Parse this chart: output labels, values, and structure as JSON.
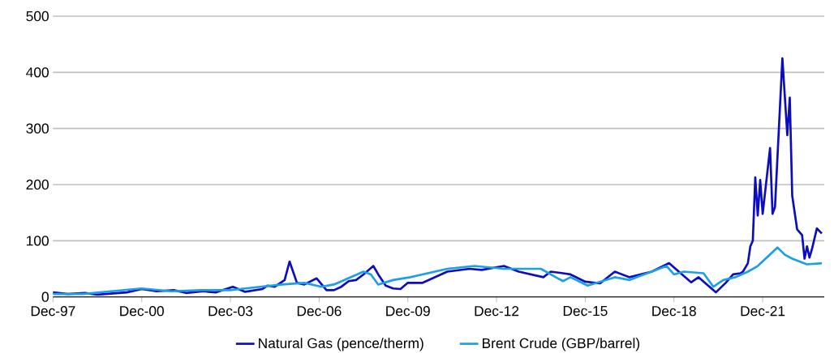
{
  "chart_data": {
    "type": "line",
    "xlim": [
      "1997-12",
      "2024-01"
    ],
    "xticks": [
      {
        "value": "1997-12",
        "label": "Dec-97"
      },
      {
        "value": "2000-12",
        "label": "Dec-00"
      },
      {
        "value": "2003-12",
        "label": "Dec-03"
      },
      {
        "value": "2006-12",
        "label": "Dec-06"
      },
      {
        "value": "2009-12",
        "label": "Dec-09"
      },
      {
        "value": "2012-12",
        "label": "Dec-12"
      },
      {
        "value": "2015-12",
        "label": "Dec-15"
      },
      {
        "value": "2018-12",
        "label": "Dec-18"
      },
      {
        "value": "2021-12",
        "label": "Dec-21"
      }
    ],
    "ylim": [
      0,
      500
    ],
    "yticks": [
      0,
      100,
      200,
      300,
      400,
      500
    ],
    "grid": "y",
    "legend": "bottom",
    "marker": "none",
    "line_style": "solid",
    "series": [
      {
        "name": "Natural Gas (pence/therm)",
        "color": "#0c0cc0",
        "x": [
          "1997-12",
          "1998-06",
          "1999-01",
          "1999-06",
          "2000-06",
          "2000-12",
          "2001-06",
          "2002-01",
          "2002-06",
          "2003-01",
          "2003-06",
          "2004-01",
          "2004-06",
          "2005-01",
          "2005-03",
          "2005-06",
          "2005-10",
          "2005-12",
          "2006-03",
          "2006-06",
          "2006-11",
          "2007-03",
          "2007-06",
          "2007-09",
          "2007-12",
          "2008-03",
          "2008-06",
          "2008-10",
          "2008-12",
          "2009-03",
          "2009-06",
          "2009-09",
          "2009-12",
          "2010-06",
          "2011-04",
          "2012-01",
          "2012-06",
          "2013-03",
          "2013-09",
          "2014-07",
          "2014-10",
          "2015-03",
          "2015-06",
          "2015-12",
          "2016-06",
          "2016-12",
          "2017-06",
          "2018-03",
          "2018-10",
          "2019-07",
          "2019-10",
          "2020-05",
          "2020-09",
          "2020-12",
          "2021-03",
          "2021-04",
          "2021-06",
          "2021-07",
          "2021-08",
          "2021-09",
          "2021-10",
          "2021-11",
          "2021-12",
          "2022-03",
          "2022-04",
          "2022-05",
          "2022-08",
          "2022-10",
          "2022-11",
          "2022-12",
          "2023-02",
          "2023-04",
          "2023-05",
          "2023-06",
          "2023-07",
          "2023-08",
          "2023-10",
          "2023-12"
        ],
        "values": [
          8,
          5,
          7,
          4,
          8,
          14,
          10,
          12,
          7,
          10,
          8,
          18,
          9,
          14,
          20,
          18,
          30,
          63,
          25,
          22,
          33,
          12,
          12,
          18,
          28,
          30,
          40,
          55,
          40,
          20,
          15,
          14,
          25,
          25,
          45,
          50,
          48,
          55,
          45,
          35,
          45,
          42,
          40,
          27,
          24,
          45,
          35,
          45,
          60,
          26,
          35,
          8,
          25,
          40,
          42,
          45,
          60,
          90,
          100,
          213,
          145,
          208,
          148,
          265,
          148,
          160,
          425,
          288,
          355,
          180,
          120,
          110,
          68,
          90,
          70,
          85,
          122,
          113
        ]
      },
      {
        "name": "Brent Crude (GBP/barrel)",
        "color": "#1aa0ea",
        "x": [
          "1997-12",
          "1998-12",
          "1999-12",
          "2000-12",
          "2001-12",
          "2002-12",
          "2003-12",
          "2004-06",
          "2005-09",
          "2006-06",
          "2007-01",
          "2007-06",
          "2008-06",
          "2008-09",
          "2008-12",
          "2009-06",
          "2010-01",
          "2011-04",
          "2012-03",
          "2013-03",
          "2014-06",
          "2014-12",
          "2015-03",
          "2015-06",
          "2016-01",
          "2016-12",
          "2017-06",
          "2018-09",
          "2018-12",
          "2019-04",
          "2019-12",
          "2020-04",
          "2020-08",
          "2021-01",
          "2021-06",
          "2021-10",
          "2022-06",
          "2022-09",
          "2022-12",
          "2023-06",
          "2023-12"
        ],
        "values": [
          5,
          5,
          10,
          15,
          10,
          12,
          12,
          15,
          22,
          25,
          18,
          22,
          45,
          40,
          22,
          30,
          35,
          50,
          55,
          50,
          50,
          35,
          28,
          35,
          20,
          35,
          30,
          55,
          40,
          45,
          42,
          18,
          30,
          35,
          45,
          55,
          88,
          75,
          68,
          58,
          60
        ]
      }
    ]
  }
}
